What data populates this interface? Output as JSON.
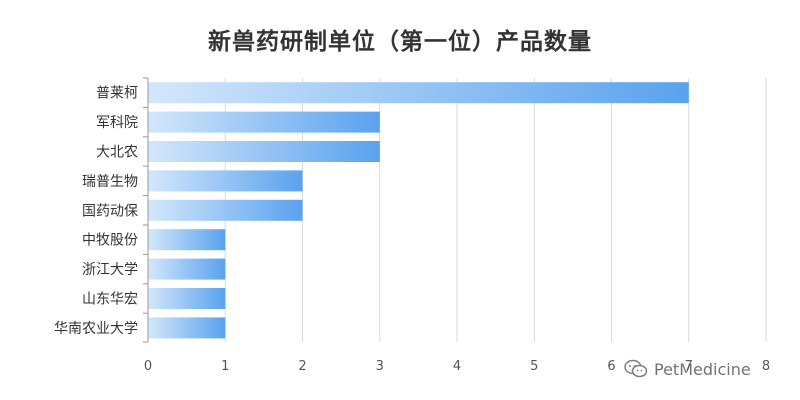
{
  "chart_data": {
    "type": "bar",
    "orientation": "horizontal",
    "title": "新兽药研制单位（第一位）产品数量",
    "categories": [
      "普莱柯",
      "军科院",
      "大北农",
      "瑞普生物",
      "国药动保",
      "中牧股份",
      "浙江大学",
      "山东华宏",
      "华南农业大学"
    ],
    "values": [
      7,
      3,
      3,
      2,
      2,
      1,
      1,
      1,
      1
    ],
    "xlim": [
      0,
      8
    ],
    "xticks": [
      "0",
      "1",
      "2",
      "3",
      "4",
      "5",
      "6",
      "7",
      "8"
    ],
    "xlabel": "",
    "ylabel": "",
    "grid": "vertical",
    "colors": {
      "bar_light": "#d3e7fb",
      "bar_dark": "#5aa2ee",
      "grid": "#d9d9d9",
      "axis": "#999999"
    }
  },
  "watermark": {
    "text": "PetMedicine",
    "icon": "wechat-icon"
  }
}
